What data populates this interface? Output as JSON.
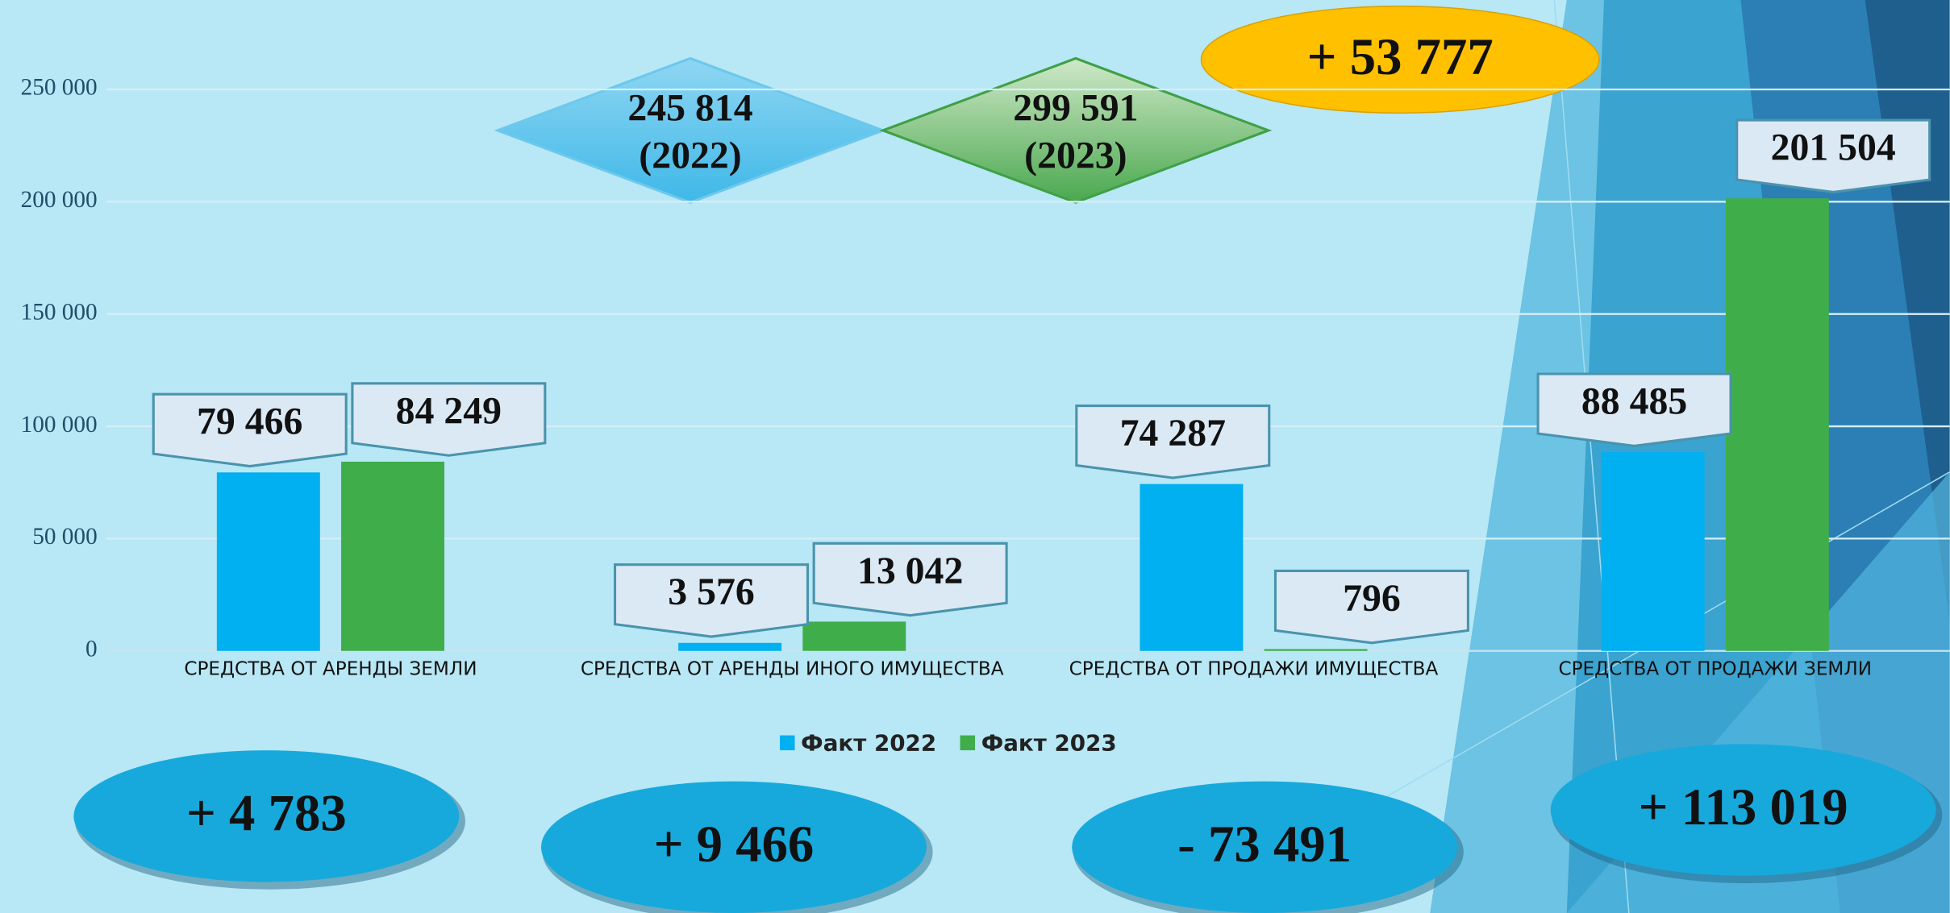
{
  "chart_data": {
    "type": "bar",
    "categories": [
      "СРЕДСТВА ОТ АРЕНДЫ ЗЕМЛИ",
      "СРЕДСТВА ОТ АРЕНДЫ ИНОГО ИМУЩЕСТВА",
      "СРЕДСТВА ОТ ПРОДАЖИ ИМУЩЕСТВА",
      "СРЕДСТВА ОТ ПРОДАЖИ ЗЕМЛИ"
    ],
    "series": [
      {
        "name": "Факт 2022",
        "color": "#00b0f0",
        "values": [
          79466,
          3576,
          74287,
          88485
        ],
        "value_labels": [
          "79 466",
          "3 576",
          "74 287",
          "88 485"
        ]
      },
      {
        "name": "Факт 2023",
        "color": "#3fae4a",
        "values": [
          84249,
          13042,
          796,
          201504
        ],
        "value_labels": [
          "84 249",
          "13 042",
          "796",
          "201 504"
        ]
      }
    ],
    "ylim": [
      0,
      250000
    ],
    "yticks": [
      0,
      {
        "value": 50000,
        "label": "50 000"
      },
      {
        "value": 100000,
        "label": "100 000"
      },
      {
        "value": 150000,
        "label": "150 000"
      },
      {
        "value": 200000,
        "label": "200 000"
      },
      {
        "value": 250000,
        "label": "250 000"
      }
    ],
    "grid": true,
    "legend": "bottom",
    "annotations": {
      "totals": [
        {
          "value": "245 814",
          "caption": "(2022)"
        },
        {
          "value": "299 591",
          "caption": "(2023)"
        }
      ],
      "total_change": "+ 53 777",
      "changes": [
        "+ 4 783",
        "+ 9 466",
        "- 73 491",
        "+ 113 019"
      ]
    }
  }
}
